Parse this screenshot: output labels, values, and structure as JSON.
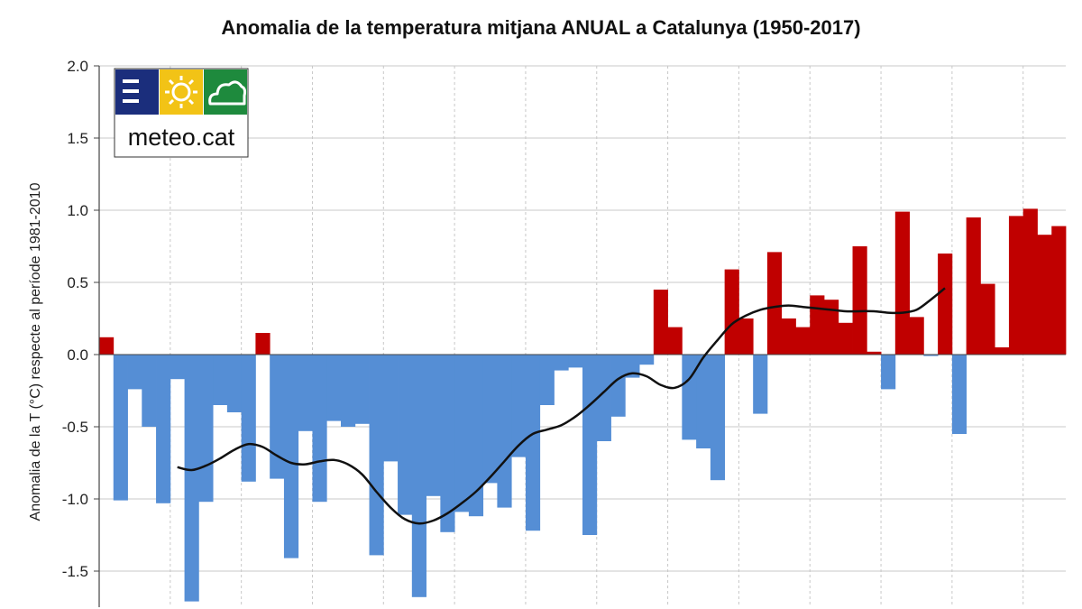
{
  "chart_data": {
    "type": "bar",
    "title": "Anomalia de la temperatura mitjana ANUAL a Catalunya (1950-2017)",
    "ylabel": "Anomalia de la T (°C) respecte al període 1981-2010",
    "xlabel": "",
    "ylim": [
      -1.75,
      2.0
    ],
    "yticks": [
      2.0,
      1.5,
      1.0,
      0.5,
      0.0,
      -0.5,
      -1.0,
      -1.5
    ],
    "ytick_labels": [
      "2.0",
      "1.5",
      "1.0",
      "0.5",
      "0.0",
      "-0.5",
      "-1.0",
      "-1.5"
    ],
    "grid": true,
    "x_start_year": 1950,
    "x_end_year": 2017,
    "positive_color": "#C00000",
    "negative_color": "#558ED5",
    "smooth_color": "#111111",
    "series": [
      {
        "values": [
          0.12,
          -1.01,
          -0.24,
          -0.5,
          -1.03,
          -0.17,
          -1.71,
          -1.02,
          -0.35,
          -0.4,
          -0.88,
          0.15,
          -0.86,
          -1.41,
          -0.53,
          -1.02,
          -0.46,
          -0.5,
          -0.48,
          -1.39,
          -0.74,
          -1.11,
          -1.68,
          -0.98,
          -1.23,
          -1.09,
          -1.12,
          -0.89,
          -1.06,
          -0.71,
          -1.22,
          -0.35,
          -0.11,
          -0.09,
          -1.25,
          -0.6,
          -0.43,
          -0.16,
          -0.07,
          0.45,
          0.19,
          -0.59,
          -0.65,
          -0.87,
          0.59,
          0.25,
          -0.41,
          0.71,
          0.25,
          0.19,
          0.41,
          0.38,
          0.22,
          0.75,
          0.02,
          -0.24,
          0.99,
          0.26,
          -0.01,
          0.7,
          -0.55,
          0.95,
          0.49,
          0.05,
          0.96,
          1.01,
          0.83,
          0.89
        ]
      },
      {
        "x_start": 1955,
        "values": [
          -0.78,
          -0.8,
          -0.77,
          -0.72,
          -0.66,
          -0.62,
          -0.64,
          -0.7,
          -0.75,
          -0.76,
          -0.74,
          -0.73,
          -0.76,
          -0.83,
          -0.95,
          -1.06,
          -1.14,
          -1.17,
          -1.15,
          -1.1,
          -1.03,
          -0.95,
          -0.85,
          -0.74,
          -0.63,
          -0.55,
          -0.52,
          -0.49,
          -0.43,
          -0.35,
          -0.26,
          -0.17,
          -0.13,
          -0.15,
          -0.21,
          -0.23,
          -0.17,
          -0.02,
          0.1,
          0.21,
          0.27,
          0.31,
          0.33,
          0.34,
          0.33,
          0.32,
          0.31,
          0.3,
          0.3,
          0.3,
          0.29,
          0.29,
          0.31,
          0.38,
          0.46
        ]
      }
    ]
  },
  "logo": {
    "text": "meteo.cat",
    "colors": {
      "navy": "#1B2E7C",
      "yellow": "#F2C316",
      "green": "#1E8A3D"
    },
    "icons": [
      "bars-icon",
      "sun-icon",
      "cloud-icon"
    ]
  }
}
